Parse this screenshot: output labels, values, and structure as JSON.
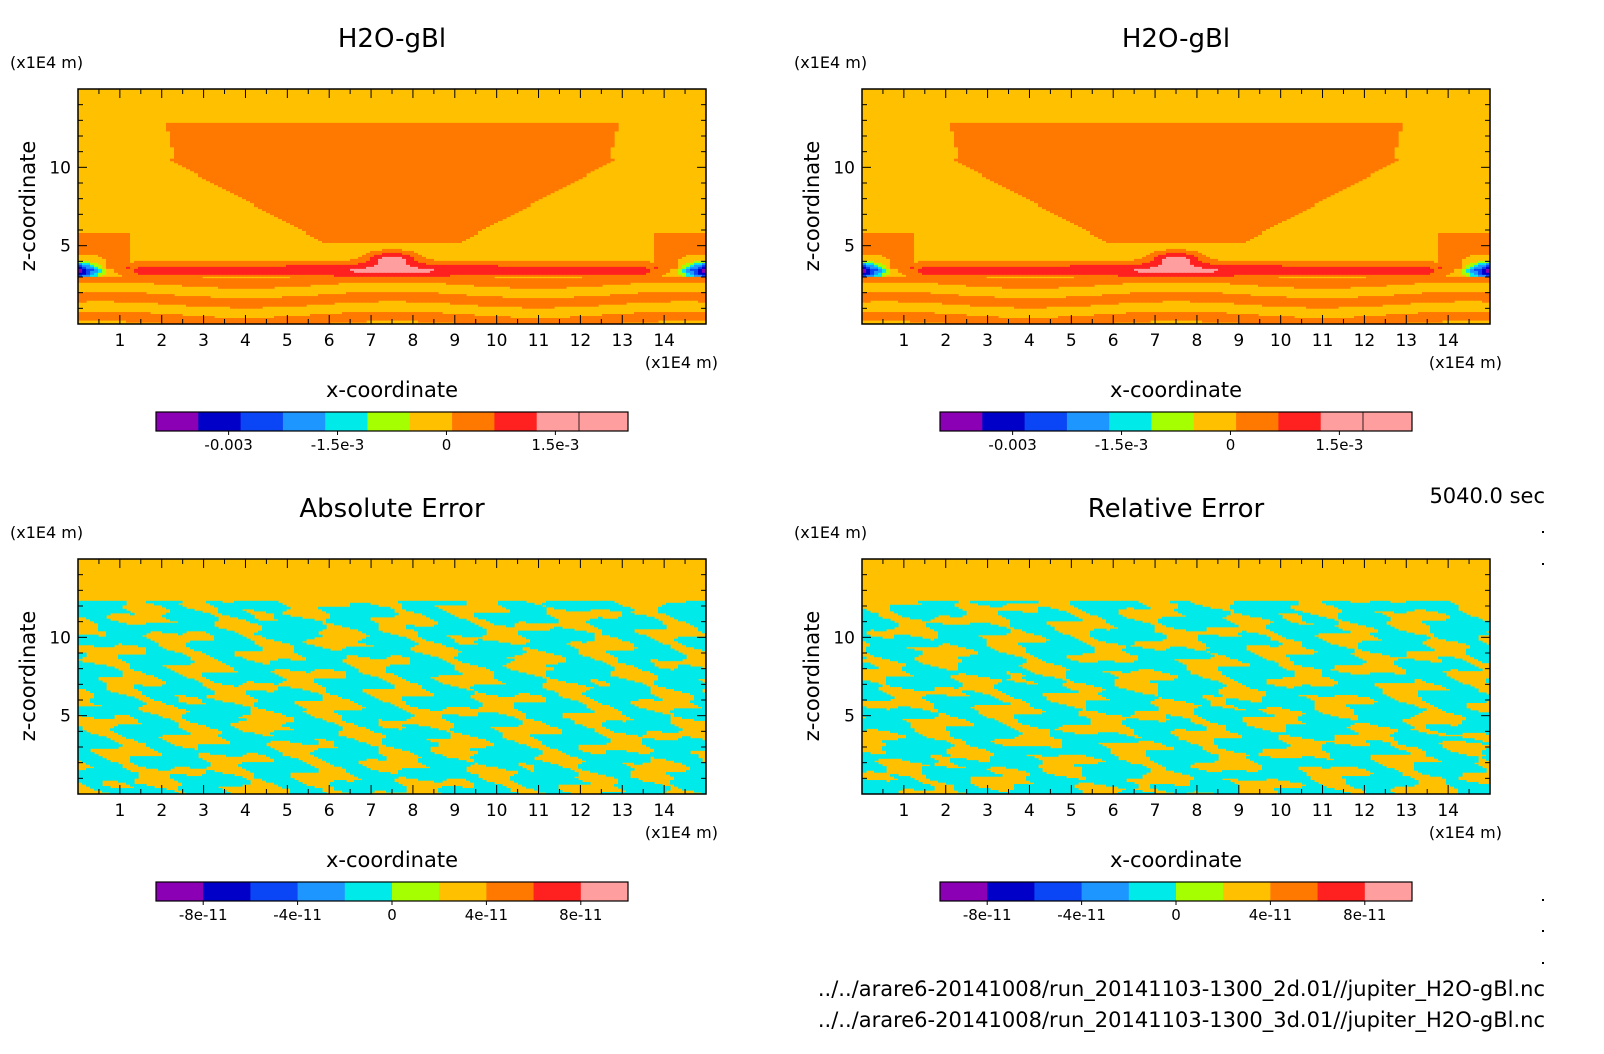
{
  "time_label": "5040.0 sec",
  "file_paths": [
    "../../arare6-20141008/run_20141103-1300_2d.01//jupiter_H2O-gBl.nc",
    "../../arare6-20141008/run_20141103-1300_3d.01//jupiter_H2O-gBl.nc"
  ],
  "palette": [
    "#8b00b4",
    "#0000c8",
    "#0a46f5",
    "#1e96ff",
    "#00eaea",
    "#a6ff00",
    "#ffc000",
    "#ff7800",
    "#ff2020",
    "#ff9e9e"
  ],
  "chart_data": [
    {
      "type": "heatmap",
      "title": "H2O-gBl",
      "xlabel": "x-coordinate",
      "ylabel": "z-coordinate",
      "x_unit": "(x1E4 m)",
      "y_unit": "(x1E4 m)",
      "xlim": [
        0,
        15
      ],
      "ylim": [
        0,
        15
      ],
      "x_ticks": [
        1,
        2,
        3,
        4,
        5,
        6,
        7,
        8,
        9,
        10,
        11,
        12,
        13,
        14
      ],
      "y_ticks": [
        5,
        10
      ],
      "field": "h2o",
      "colorbar": {
        "ticks": [
          "-0.003",
          "-1.5e-3",
          "0",
          "1.5e-3"
        ],
        "values": [
          -0.003,
          -0.0015,
          0,
          0.0015
        ],
        "range": [
          -0.004,
          0.0025
        ]
      }
    },
    {
      "type": "heatmap",
      "title": "H2O-gBl",
      "xlabel": "x-coordinate",
      "ylabel": "z-coordinate",
      "x_unit": "(x1E4 m)",
      "y_unit": "(x1E4 m)",
      "xlim": [
        0,
        15
      ],
      "ylim": [
        0,
        15
      ],
      "x_ticks": [
        1,
        2,
        3,
        4,
        5,
        6,
        7,
        8,
        9,
        10,
        11,
        12,
        13,
        14
      ],
      "y_ticks": [
        5,
        10
      ],
      "field": "h2o",
      "colorbar": {
        "ticks": [
          "-0.003",
          "-1.5e-3",
          "0",
          "1.5e-3"
        ],
        "values": [
          -0.003,
          -0.0015,
          0,
          0.0015
        ],
        "range": [
          -0.004,
          0.0025
        ]
      }
    },
    {
      "type": "heatmap",
      "title": "Absolute Error",
      "xlabel": "x-coordinate",
      "ylabel": "z-coordinate",
      "x_unit": "(x1E4 m)",
      "y_unit": "(x1E4 m)",
      "xlim": [
        0,
        15
      ],
      "ylim": [
        0,
        15
      ],
      "x_ticks": [
        1,
        2,
        3,
        4,
        5,
        6,
        7,
        8,
        9,
        10,
        11,
        12,
        13,
        14
      ],
      "y_ticks": [
        5,
        10
      ],
      "field": "noise",
      "colorbar": {
        "ticks": [
          "-8e-11",
          "-4e-11",
          "0",
          "4e-11",
          "8e-11"
        ],
        "values": [
          -8e-11,
          -4e-11,
          0,
          4e-11,
          8e-11
        ],
        "range": [
          -1e-10,
          1e-10
        ]
      }
    },
    {
      "type": "heatmap",
      "title": "Relative Error",
      "xlabel": "x-coordinate",
      "ylabel": "z-coordinate",
      "x_unit": "(x1E4 m)",
      "y_unit": "(x1E4 m)",
      "xlim": [
        0,
        15
      ],
      "ylim": [
        0,
        15
      ],
      "x_ticks": [
        1,
        2,
        3,
        4,
        5,
        6,
        7,
        8,
        9,
        10,
        11,
        12,
        13,
        14
      ],
      "y_ticks": [
        5,
        10
      ],
      "field": "noise",
      "colorbar": {
        "ticks": [
          "-8e-11",
          "-4e-11",
          "0",
          "4e-11",
          "8e-11"
        ],
        "values": [
          -8e-11,
          -4e-11,
          0,
          4e-11,
          8e-11
        ],
        "range": [
          -1e-10,
          1e-10
        ]
      }
    }
  ]
}
